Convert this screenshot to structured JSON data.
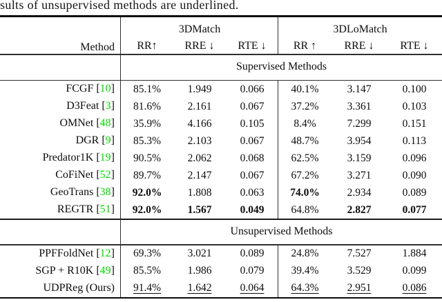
{
  "caption": "sults of unsupervised methods are underlined.",
  "table": {
    "method_header": "Method",
    "group_headers": [
      "3DMatch",
      "3DLoMatch"
    ],
    "col_headers": [
      "RR↑",
      "RRE ↓",
      "RTE ↓",
      "RR ↑",
      "RRE ↓",
      "RTE ↓"
    ],
    "cite_color": "#00DC00",
    "sections": [
      {
        "title": "Supervised Methods",
        "rows": [
          {
            "method": "FCGF",
            "cite": "10",
            "values": [
              "85.1%",
              "1.949",
              "0.066",
              "40.1%",
              "3.147",
              "0.100"
            ],
            "bold": [],
            "underline": []
          },
          {
            "method": "D3Feat",
            "cite": "3",
            "values": [
              "81.6%",
              "2.161",
              "0.067",
              "37.2%",
              "3.361",
              "0.103"
            ],
            "bold": [],
            "underline": []
          },
          {
            "method": "OMNet",
            "cite": "48",
            "values": [
              "35.9%",
              "4.166",
              "0.105",
              "8.4%",
              "7.299",
              "0.151"
            ],
            "bold": [],
            "underline": []
          },
          {
            "method": "DGR",
            "cite": "9",
            "values": [
              "85.3%",
              "2.103",
              "0.067",
              "48.7%",
              "3.954",
              "0.113"
            ],
            "bold": [],
            "underline": []
          },
          {
            "method": "Predator1K",
            "cite": "19",
            "values": [
              "90.5%",
              "2.062",
              "0.068",
              "62.5%",
              "3.159",
              "0.096"
            ],
            "bold": [],
            "underline": []
          },
          {
            "method": "CoFiNet",
            "cite": "52",
            "values": [
              "89.7%",
              "2.147",
              "0.067",
              "67.2%",
              "3.271",
              "0.090"
            ],
            "bold": [],
            "underline": []
          },
          {
            "method": "GeoTrans",
            "cite": "38",
            "values": [
              "92.0%",
              "1.808",
              "0.063",
              "74.0%",
              "2.934",
              "0.089"
            ],
            "bold": [
              0,
              3
            ],
            "underline": []
          },
          {
            "method": "REGTR",
            "cite": "51",
            "values": [
              "92.0%",
              "1.567",
              "0.049",
              "64.8%",
              "2.827",
              "0.077"
            ],
            "bold": [
              0,
              1,
              2,
              4,
              5
            ],
            "underline": []
          }
        ]
      },
      {
        "title": "Unsupervised Methods",
        "rows": [
          {
            "method": "PPFFoldNet",
            "cite": "12",
            "values": [
              "69.3%",
              "3.021",
              "0.089",
              "24.8%",
              "7.527",
              "1.884"
            ],
            "bold": [],
            "underline": []
          },
          {
            "method": "SGP + R10K",
            "cite": "49",
            "values": [
              "85.5%",
              "1.986",
              "0.079",
              "39.4%",
              "3.529",
              "0.099"
            ],
            "bold": [],
            "underline": []
          },
          {
            "method": "UDPReg (Ours)",
            "cite": null,
            "values": [
              "91.4%",
              "1.642",
              "0.064",
              "64.3%",
              "2.951",
              "0.086"
            ],
            "bold": [],
            "underline": [
              0,
              1,
              2,
              3,
              4,
              5
            ]
          }
        ]
      }
    ]
  }
}
